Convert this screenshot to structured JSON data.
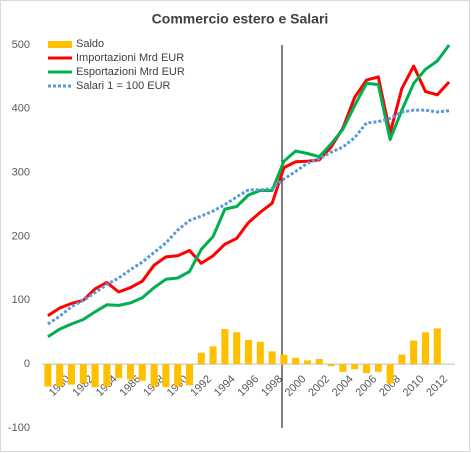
{
  "chart_data": {
    "type": "bar",
    "title": "Commercio estero e Salari",
    "categories": [
      null,
      "1980",
      null,
      "1982",
      null,
      "1984",
      null,
      "1986",
      null,
      "1988",
      null,
      "1990",
      null,
      "1992",
      null,
      "1994",
      null,
      "1996",
      null,
      "1998",
      null,
      "2000",
      null,
      "2002",
      null,
      "2004",
      null,
      "2006",
      null,
      "2008",
      null,
      "2010",
      null,
      "2012",
      null
    ],
    "series": [
      {
        "name": "Saldo",
        "type": "bar",
        "color": "#ffc000",
        "values": [
          -35,
          -35,
          -32,
          -30,
          -36,
          -35,
          -22,
          -24,
          -26,
          -35,
          -36,
          -35,
          -33,
          18,
          28,
          55,
          50,
          38,
          35,
          20,
          15,
          10,
          6,
          8,
          -3,
          -12,
          -8,
          -14,
          -12,
          -30,
          15,
          37,
          50,
          56,
          null
        ]
      },
      {
        "name": "Importazioni Mrd EUR",
        "type": "line",
        "color": "#ff0000",
        "values": [
          76,
          88,
          95,
          100,
          118,
          128,
          113,
          120,
          130,
          155,
          168,
          170,
          178,
          158,
          170,
          188,
          197,
          222,
          238,
          252,
          308,
          317,
          318,
          320,
          340,
          370,
          418,
          445,
          450,
          362,
          432,
          467,
          427,
          422,
          442
        ]
      },
      {
        "name": "Esportazioni Mrd EUR",
        "type": "line",
        "color": "#00b050",
        "values": [
          43,
          55,
          63,
          70,
          82,
          93,
          92,
          96,
          104,
          120,
          133,
          135,
          145,
          180,
          200,
          243,
          247,
          265,
          272,
          272,
          318,
          334,
          330,
          325,
          345,
          368,
          405,
          440,
          438,
          352,
          398,
          440,
          462,
          475,
          500
        ]
      },
      {
        "name": "Salari 1 = 100 EUR",
        "type": "line",
        "color": "#5b9bd5",
        "dashed": true,
        "values": [
          63,
          75,
          90,
          100,
          112,
          125,
          135,
          148,
          160,
          175,
          190,
          210,
          225,
          232,
          240,
          250,
          262,
          273,
          273,
          275,
          290,
          302,
          315,
          322,
          332,
          340,
          355,
          378,
          380,
          385,
          395,
          398,
          398,
          395,
          397
        ]
      }
    ],
    "ylim": [
      -100,
      500
    ],
    "yticks": [
      -100,
      0,
      100,
      200,
      300,
      400,
      500
    ],
    "grid": false,
    "legend": "top-left"
  }
}
